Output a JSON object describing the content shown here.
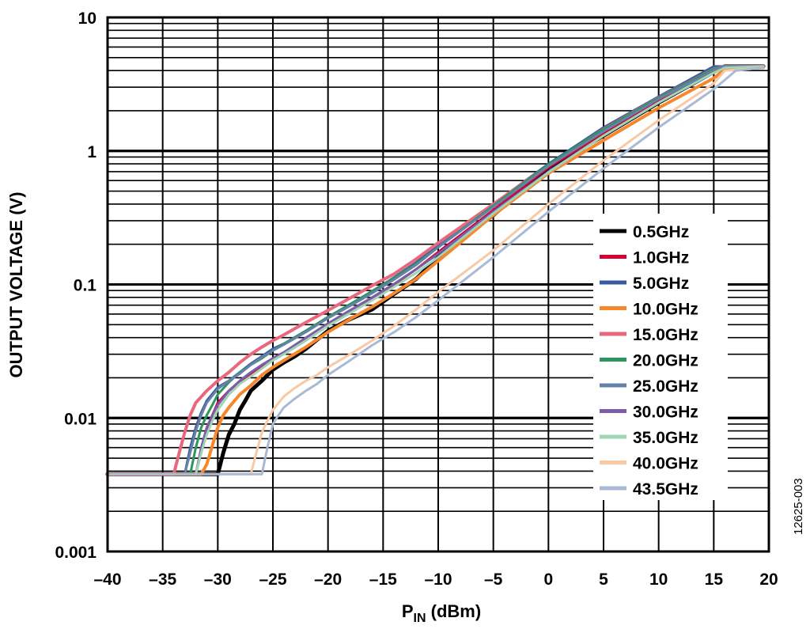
{
  "figure_id": "12625-003",
  "chart_data": {
    "type": "line",
    "xlabel_main": "P",
    "xlabel_sub": "IN",
    "xlabel_rest": " (dBm)",
    "ylabel": "OUTPUT VOLTAGE (V)",
    "xlim": [
      -40,
      20
    ],
    "ylim": [
      0.001,
      10
    ],
    "yscale": "log",
    "grid": true,
    "legend_position": "center-right",
    "x_tick_labels": [
      "–40",
      "–35",
      "–30",
      "–25",
      "–20",
      "–15",
      "–10",
      "–5",
      "0",
      "5",
      "10",
      "15",
      "20"
    ],
    "y_tick_labels": [
      "0.001",
      "0.01",
      "0.1",
      "1",
      "10"
    ],
    "series": [
      {
        "name": "0.5GHz",
        "color": "#000000",
        "width": 5,
        "x": [
          -40,
          -30,
          -29.5,
          -29,
          -28.5,
          -28,
          -27.5,
          -27,
          -26,
          -25,
          -24,
          -23,
          -22,
          -20,
          -18,
          -16,
          -14,
          -12,
          -10,
          -8,
          -5,
          0,
          5,
          10,
          15,
          16,
          19.5
        ],
        "y": [
          0.0038,
          0.0038,
          0.0055,
          0.0075,
          0.009,
          0.0115,
          0.0135,
          0.016,
          0.019,
          0.023,
          0.026,
          0.029,
          0.033,
          0.045,
          0.055,
          0.065,
          0.085,
          0.11,
          0.16,
          0.22,
          0.33,
          0.75,
          1.3,
          2.3,
          3.9,
          4.3,
          4.3
        ]
      },
      {
        "name": "1.0GHz",
        "color": "#d50032",
        "width": 3,
        "x": [
          -40,
          -32,
          -31.5,
          -31,
          -30.5,
          -30,
          -29,
          -28,
          -27,
          -26,
          -25,
          -24,
          -22,
          -20,
          -18,
          -16,
          -14,
          -12,
          -10,
          -5,
          0,
          5,
          10,
          15,
          16,
          19.5
        ],
        "y": [
          0.0038,
          0.0038,
          0.0055,
          0.008,
          0.0105,
          0.013,
          0.016,
          0.0185,
          0.021,
          0.0245,
          0.028,
          0.031,
          0.039,
          0.05,
          0.062,
          0.078,
          0.1,
          0.13,
          0.175,
          0.36,
          0.75,
          1.35,
          2.35,
          4.0,
          4.3,
          4.3
        ]
      },
      {
        "name": "5.0GHz",
        "color": "#3a5ba0",
        "width": 3,
        "x": [
          -40,
          -33,
          -32.5,
          -32,
          -31.5,
          -31,
          -30,
          -29,
          -28,
          -27,
          -26,
          -25,
          -24,
          -22,
          -20,
          -18,
          -16,
          -14,
          -12,
          -10,
          -5,
          0,
          5,
          10,
          15,
          16,
          19.5
        ],
        "y": [
          0.0038,
          0.0038,
          0.006,
          0.0085,
          0.011,
          0.0135,
          0.017,
          0.019,
          0.022,
          0.0255,
          0.029,
          0.033,
          0.036,
          0.045,
          0.057,
          0.071,
          0.089,
          0.113,
          0.146,
          0.2,
          0.4,
          0.8,
          1.5,
          2.55,
          4.3,
          4.3,
          4.3
        ]
      },
      {
        "name": "10.0GHz",
        "color": "#f7872d",
        "width": 4,
        "x": [
          -40,
          -31.5,
          -31,
          -30.5,
          -30,
          -29.5,
          -29,
          -28,
          -27,
          -26,
          -25,
          -24,
          -22,
          -20,
          -18,
          -16,
          -14,
          -12,
          -10,
          -5,
          0,
          5,
          10,
          15,
          16,
          19.5
        ],
        "y": [
          0.0038,
          0.0038,
          0.0045,
          0.0062,
          0.0085,
          0.0105,
          0.012,
          0.015,
          0.0175,
          0.021,
          0.024,
          0.027,
          0.034,
          0.044,
          0.055,
          0.068,
          0.086,
          0.11,
          0.15,
          0.33,
          0.68,
          1.2,
          2.1,
          3.5,
          4.1,
          4.2
        ]
      },
      {
        "name": "15.0GHz",
        "color": "#e8697d",
        "width": 4,
        "x": [
          -40,
          -34,
          -33.5,
          -33,
          -32.5,
          -32,
          -31,
          -30,
          -29,
          -28,
          -27,
          -26,
          -25,
          -24,
          -22,
          -20,
          -18,
          -16,
          -14,
          -12,
          -10,
          -5,
          0,
          5,
          10,
          15,
          16,
          19.5
        ],
        "y": [
          0.0038,
          0.0038,
          0.0055,
          0.0078,
          0.0105,
          0.013,
          0.016,
          0.019,
          0.022,
          0.026,
          0.03,
          0.034,
          0.038,
          0.042,
          0.052,
          0.064,
          0.079,
          0.098,
          0.12,
          0.155,
          0.205,
          0.4,
          0.78,
          1.45,
          2.5,
          4.1,
          4.3,
          4.3
        ]
      },
      {
        "name": "20.0GHz",
        "color": "#2e9460",
        "width": 3,
        "x": [
          -40,
          -32.5,
          -32,
          -31.5,
          -31,
          -30.5,
          -30,
          -29,
          -28,
          -27,
          -26,
          -25,
          -24,
          -22,
          -20,
          -18,
          -16,
          -14,
          -12,
          -10,
          -5,
          0,
          5,
          10,
          15,
          16,
          19.5
        ],
        "y": [
          0.0038,
          0.0038,
          0.006,
          0.0085,
          0.0105,
          0.0125,
          0.015,
          0.0185,
          0.022,
          0.025,
          0.028,
          0.032,
          0.036,
          0.045,
          0.057,
          0.071,
          0.089,
          0.112,
          0.143,
          0.19,
          0.39,
          0.79,
          1.45,
          2.5,
          4.1,
          4.3,
          4.3
        ]
      },
      {
        "name": "25.0GHz",
        "color": "#6782a8",
        "width": 3,
        "x": [
          -40,
          -33,
          -32.5,
          -32,
          -31.5,
          -31,
          -30,
          -29,
          -28,
          -27,
          -26,
          -25,
          -24,
          -22,
          -20,
          -18,
          -16,
          -14,
          -12,
          -10,
          -5,
          0,
          5,
          10,
          15,
          16,
          19.5
        ],
        "y": [
          0.0038,
          0.0038,
          0.0055,
          0.008,
          0.0105,
          0.013,
          0.0165,
          0.019,
          0.0215,
          0.025,
          0.0285,
          0.032,
          0.0355,
          0.044,
          0.056,
          0.069,
          0.086,
          0.109,
          0.14,
          0.19,
          0.38,
          0.77,
          1.4,
          2.45,
          4.0,
          4.3,
          4.3
        ]
      },
      {
        "name": "30.0GHz",
        "color": "#7b5ea7",
        "width": 3,
        "x": [
          -40,
          -32,
          -31.5,
          -31,
          -30.5,
          -30,
          -29,
          -28,
          -27,
          -26,
          -25,
          -24,
          -22,
          -20,
          -18,
          -16,
          -14,
          -12,
          -10,
          -5,
          0,
          5,
          10,
          15,
          16,
          19.5
        ],
        "y": [
          0.0038,
          0.0038,
          0.006,
          0.0085,
          0.0105,
          0.0125,
          0.016,
          0.019,
          0.022,
          0.025,
          0.028,
          0.031,
          0.04,
          0.051,
          0.064,
          0.08,
          0.101,
          0.13,
          0.17,
          0.35,
          0.7,
          1.3,
          2.3,
          3.9,
          4.2,
          4.3
        ]
      },
      {
        "name": "35.0GHz",
        "color": "#9fd4b4",
        "width": 3,
        "x": [
          -40,
          -32,
          -31.5,
          -31,
          -30.5,
          -30,
          -29,
          -28,
          -27,
          -26,
          -25,
          -24,
          -22,
          -20,
          -18,
          -16,
          -14,
          -12,
          -10,
          -5,
          0,
          5,
          10,
          15,
          16,
          19.5
        ],
        "y": [
          0.0038,
          0.0038,
          0.0055,
          0.0075,
          0.0095,
          0.0115,
          0.015,
          0.018,
          0.0205,
          0.0235,
          0.027,
          0.03,
          0.038,
          0.049,
          0.061,
          0.076,
          0.096,
          0.122,
          0.16,
          0.34,
          0.69,
          1.3,
          2.3,
          3.85,
          4.2,
          4.3
        ]
      },
      {
        "name": "40.0GHz",
        "color": "#f9c8a4",
        "width": 3,
        "x": [
          -40,
          -27,
          -26.5,
          -26,
          -25.5,
          -25,
          -24,
          -23,
          -22,
          -21,
          -20,
          -18,
          -16,
          -14,
          -12,
          -10,
          -5,
          0,
          5,
          10,
          15,
          16,
          19.5
        ],
        "y": [
          0.0038,
          0.0038,
          0.0055,
          0.0078,
          0.0095,
          0.0115,
          0.0145,
          0.0168,
          0.019,
          0.021,
          0.024,
          0.03,
          0.038,
          0.049,
          0.065,
          0.088,
          0.18,
          0.4,
          0.85,
          1.7,
          3.2,
          4.0,
          4.2
        ]
      },
      {
        "name": "43.5GHz",
        "color": "#a9b9d6",
        "width": 3,
        "x": [
          -40,
          -26,
          -25.5,
          -25,
          -24.5,
          -24,
          -23,
          -22,
          -21,
          -20,
          -18,
          -16,
          -14,
          -12,
          -10,
          -5,
          0,
          5,
          10,
          15,
          16,
          17,
          19.5
        ],
        "y": [
          0.0038,
          0.0038,
          0.006,
          0.009,
          0.0105,
          0.012,
          0.014,
          0.016,
          0.018,
          0.021,
          0.027,
          0.035,
          0.044,
          0.057,
          0.076,
          0.16,
          0.35,
          0.74,
          1.5,
          2.9,
          3.4,
          4.0,
          4.2
        ]
      }
    ]
  }
}
